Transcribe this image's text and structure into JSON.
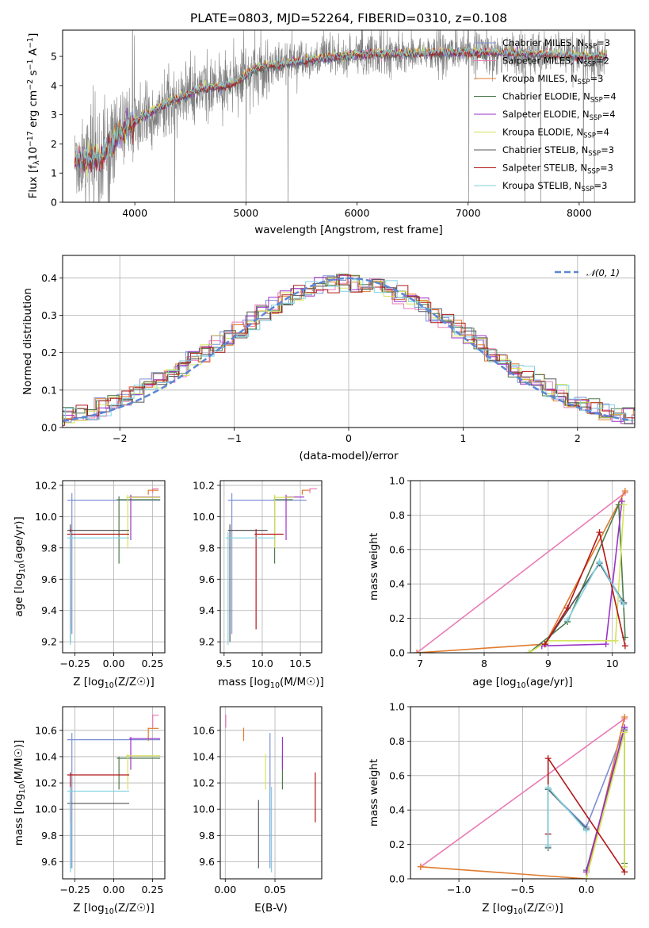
{
  "page": {
    "title": "PLATE=0803, MJD=52264, FIBERID=0310, z=0.108"
  },
  "series_colors": {
    "Chabrier MILES": "#7b8fd6",
    "Salpeter MILES": "#ea7bb6",
    "Kroupa MILES": "#e07b2e",
    "Chabrier ELODIE": "#4d7a4d",
    "Salpeter ELODIE": "#9b32c8",
    "Kroupa ELODIE": "#d4e35a",
    "Chabrier STELIB": "#555555",
    "Salpeter STELIB": "#b21818",
    "Kroupa STELIB": "#7fd2e0"
  },
  "legend": [
    {
      "base": "Chabrier MILES, N",
      "sub": "SSP",
      "tail": "=3",
      "color": "#7b8fd6"
    },
    {
      "base": "Salpeter MILES, N",
      "sub": "SSP",
      "tail": "=2",
      "color": "#ea7bb6"
    },
    {
      "base": "Kroupa MILES, N",
      "sub": "SSP",
      "tail": "=3",
      "color": "#e07b2e"
    },
    {
      "base": "Chabrier ELODIE, N",
      "sub": "SSP",
      "tail": "=4",
      "color": "#4d7a4d"
    },
    {
      "base": "Salpeter ELODIE, N",
      "sub": "SSP",
      "tail": "=4",
      "color": "#9b32c8"
    },
    {
      "base": "Kroupa ELODIE, N",
      "sub": "SSP",
      "tail": "=4",
      "color": "#d4e35a"
    },
    {
      "base": "Chabrier STELIB, N",
      "sub": "SSP",
      "tail": "=3",
      "color": "#555555"
    },
    {
      "base": "Salpeter STELIB, N",
      "sub": "SSP",
      "tail": "=3",
      "color": "#b21818"
    },
    {
      "base": "Kroupa STELIB, N",
      "sub": "SSP",
      "tail": "=3",
      "color": "#7fd2e0"
    }
  ],
  "chart_data": [
    {
      "type": "line",
      "id": "spectrum",
      "title": "PLATE=0803, MJD=52264, FIBERID=0310, z=0.108",
      "xlabel": "wavelength [Angstrom, rest frame]",
      "ylabel": "Flux [fλ10⁻¹⁷ erg cm⁻² s⁻¹ A⁻¹]",
      "xlim": [
        3350,
        8500
      ],
      "ylim": [
        0,
        5.9
      ],
      "xticks": [
        "4000",
        "5000",
        "6000",
        "7000",
        "8000"
      ],
      "yticks": [
        "0",
        "1",
        "2",
        "3",
        "4",
        "5"
      ],
      "grid": false,
      "legend_position": "right",
      "data_color": "#808080",
      "x_range_data": [
        3460,
        8250
      ],
      "continuum_points": [
        [
          3460,
          1.45
        ],
        [
          3700,
          1.5
        ],
        [
          3900,
          2.5
        ],
        [
          4100,
          3.0
        ],
        [
          4300,
          3.4
        ],
        [
          4600,
          3.9
        ],
        [
          4860,
          4.0
        ],
        [
          5100,
          4.6
        ],
        [
          5500,
          4.85
        ],
        [
          6000,
          5.05
        ],
        [
          6500,
          5.1
        ],
        [
          7000,
          5.15
        ],
        [
          7500,
          5.1
        ],
        [
          8000,
          5.0
        ],
        [
          8250,
          5.0
        ]
      ]
    },
    {
      "type": "line",
      "id": "residual-histogram",
      "xlabel": "(data-model)/error",
      "ylabel": "Normed distribution",
      "xlim": [
        -2.5,
        2.5
      ],
      "ylim": [
        0,
        0.46
      ],
      "xticks": [
        "−2",
        "−1",
        "0",
        "1",
        "2"
      ],
      "yticks": [
        "0.0",
        "0.1",
        "0.2",
        "0.3",
        "0.4"
      ],
      "grid": true,
      "legend_position": "top-right",
      "reference_curve": {
        "name": "N(0,1)",
        "color": "#5b86d6",
        "mean": 0,
        "sigma": 1
      }
    },
    {
      "type": "scatter",
      "id": "age-vs-metallicity",
      "xlabel": "Z [log10(Z/Z☉)]",
      "ylabel": "age  [log10(age/yr)]",
      "xlim": [
        -0.33,
        0.33
      ],
      "ylim": [
        9.13,
        10.23
      ],
      "xticks": [
        "−0.25",
        "0.00",
        "0.25"
      ],
      "yticks": [
        "9.2",
        "9.4",
        "9.6",
        "9.8",
        "10.0",
        "10.2"
      ],
      "grid": true
    },
    {
      "type": "scatter",
      "id": "age-vs-mass",
      "xlabel": "mass [log10(M/M☉)]",
      "ylabel": "",
      "xlim": [
        9.45,
        10.78
      ],
      "ylim": [
        9.13,
        10.23
      ],
      "xticks": [
        "9.5",
        "10.0",
        "10.5"
      ],
      "yticks": [
        "9.2",
        "9.4",
        "9.6",
        "9.8",
        "10.0",
        "10.2"
      ],
      "grid": true
    },
    {
      "type": "line",
      "id": "mass-weight-vs-age",
      "xlabel": "age  [log10(age/yr)]",
      "ylabel": "mass weight",
      "xlim": [
        6.85,
        10.35
      ],
      "ylim": [
        0,
        1.0
      ],
      "xticks": [
        "7",
        "8",
        "9",
        "10"
      ],
      "yticks": [
        "0.0",
        "0.2",
        "0.4",
        "0.6",
        "0.8",
        "1.0"
      ],
      "grid": true,
      "series": [
        {
          "name": "Chabrier MILES",
          "color": "#7b8fd6",
          "points": [
            [
              8.95,
              0.05
            ],
            [
              9.8,
              0.52
            ],
            [
              10.15,
              0.3
            ]
          ]
        },
        {
          "name": "Salpeter MILES",
          "color": "#ea7bb6",
          "points": [
            [
              6.95,
              0.0
            ],
            [
              10.2,
              0.93
            ]
          ]
        },
        {
          "name": "Kroupa MILES",
          "color": "#e07b2e",
          "points": [
            [
              6.95,
              0.0
            ],
            [
              8.95,
              0.05
            ],
            [
              10.2,
              0.94
            ]
          ]
        },
        {
          "name": "Chabrier ELODIE",
          "color": "#4d7a4d",
          "points": [
            [
              8.7,
              0.0
            ],
            [
              9.3,
              0.18
            ],
            [
              10.1,
              0.86
            ],
            [
              10.2,
              0.09
            ]
          ]
        },
        {
          "name": "Salpeter ELODIE",
          "color": "#9b32c8",
          "points": [
            [
              8.9,
              0.04
            ],
            [
              9.9,
              0.05
            ],
            [
              10.15,
              0.88
            ]
          ]
        },
        {
          "name": "Kroupa ELODIE",
          "color": "#d4e35a",
          "points": [
            [
              8.7,
              0.0
            ],
            [
              9.0,
              0.07
            ],
            [
              10.05,
              0.07
            ],
            [
              10.18,
              0.86
            ]
          ]
        },
        {
          "name": "Chabrier STELIB",
          "color": "#555555",
          "points": [
            [
              8.95,
              0.05
            ],
            [
              9.8,
              0.52
            ],
            [
              10.18,
              0.29
            ]
          ]
        },
        {
          "name": "Salpeter STELIB",
          "color": "#b21818",
          "points": [
            [
              8.95,
              0.05
            ],
            [
              9.3,
              0.26
            ],
            [
              9.8,
              0.7
            ],
            [
              10.2,
              0.04
            ]
          ]
        },
        {
          "name": "Kroupa STELIB",
          "color": "#7fd2e0",
          "points": [
            [
              9.3,
              0.19
            ],
            [
              9.8,
              0.53
            ],
            [
              10.18,
              0.28
            ]
          ]
        }
      ]
    },
    {
      "type": "scatter",
      "id": "mass-vs-metallicity",
      "xlabel": "Z [log10(Z/Z☉)]",
      "ylabel": "mass [log10(M/M☉)]",
      "xlim": [
        -0.33,
        0.33
      ],
      "ylim": [
        9.47,
        10.78
      ],
      "xticks": [
        "−0.25",
        "0.00",
        "0.25"
      ],
      "yticks": [
        "9.6",
        "9.8",
        "10.0",
        "10.2",
        "10.4",
        "10.6"
      ],
      "grid": true
    },
    {
      "type": "scatter",
      "id": "mass-vs-extinction",
      "xlabel": "E(B-V)",
      "ylabel": "",
      "xlim": [
        -0.005,
        0.097
      ],
      "ylim": [
        9.47,
        10.78
      ],
      "xticks": [
        "0.00",
        "0.05"
      ],
      "yticks": [
        "9.6",
        "9.8",
        "10.0",
        "10.2",
        "10.4",
        "10.6"
      ],
      "grid": true
    },
    {
      "type": "line",
      "id": "mass-weight-vs-metallicity",
      "xlabel": "Z [log10(Z/Z☉)]",
      "ylabel": "mass weight",
      "xlim": [
        -1.38,
        0.38
      ],
      "ylim": [
        0,
        1.0
      ],
      "xticks": [
        "−1.0",
        "−0.5",
        "0.0"
      ],
      "yticks": [
        "0.0",
        "0.2",
        "0.4",
        "0.6",
        "0.8",
        "1.0"
      ],
      "grid": true,
      "series": [
        {
          "name": "Chabrier MILES",
          "color": "#7b8fd6",
          "points": [
            [
              -0.3,
              0.19
            ],
            [
              -0.3,
              0.52
            ],
            [
              0.0,
              0.3
            ],
            [
              0.3,
              0.87
            ]
          ]
        },
        {
          "name": "Salpeter MILES",
          "color": "#ea7bb6",
          "points": [
            [
              -1.3,
              0.07
            ],
            [
              0.3,
              0.93
            ]
          ]
        },
        {
          "name": "Kroupa MILES",
          "color": "#e07b2e",
          "points": [
            [
              -1.3,
              0.07
            ],
            [
              0.0,
              0.0
            ],
            [
              0.3,
              0.94
            ]
          ]
        },
        {
          "name": "Chabrier ELODIE",
          "color": "#4d7a4d",
          "points": [
            [
              0.0,
              0.05
            ],
            [
              0.3,
              0.86
            ],
            [
              0.3,
              0.09
            ]
          ]
        },
        {
          "name": "Salpeter ELODIE",
          "color": "#9b32c8",
          "points": [
            [
              0.0,
              0.04
            ],
            [
              0.3,
              0.88
            ]
          ]
        },
        {
          "name": "Kroupa ELODIE",
          "color": "#d4e35a",
          "points": [
            [
              0.0,
              0.0
            ],
            [
              0.3,
              0.85
            ],
            [
              0.3,
              0.07
            ]
          ]
        },
        {
          "name": "Chabrier STELIB",
          "color": "#555555",
          "points": [
            [
              -0.3,
              0.18
            ],
            [
              -0.3,
              0.52
            ],
            [
              0.0,
              0.29
            ]
          ]
        },
        {
          "name": "Salpeter STELIB",
          "color": "#b21818",
          "points": [
            [
              -0.3,
              0.26
            ],
            [
              -0.3,
              0.7
            ],
            [
              0.3,
              0.04
            ]
          ]
        },
        {
          "name": "Kroupa STELIB",
          "color": "#7fd2e0",
          "points": [
            [
              -0.3,
              0.19
            ],
            [
              -0.3,
              0.53
            ],
            [
              0.0,
              0.28
            ]
          ]
        }
      ]
    }
  ],
  "fit_results": [
    {
      "name": "Chabrier MILES",
      "Z": [
        -0.3,
        0.3
      ],
      "age": [
        9.25,
        10.15
      ],
      "mass": [
        9.55,
        10.58
      ],
      "ebv": [
        0.04,
        0.05
      ]
    },
    {
      "name": "Salpeter MILES",
      "Z": [
        0.25,
        0.29
      ],
      "age": [
        10.15,
        10.18
      ],
      "mass": [
        10.62,
        10.72
      ],
      "ebv": [
        0.0,
        0.001
      ]
    },
    {
      "name": "Kroupa MILES",
      "Z": [
        0.22,
        0.29
      ],
      "age": [
        10.14,
        10.17
      ],
      "mass": [
        10.52,
        10.62
      ],
      "ebv": [
        0.018,
        0.019
      ]
    },
    {
      "name": "Chabrier ELODIE",
      "Z": [
        0.02,
        0.3
      ],
      "age": [
        9.7,
        10.13
      ],
      "mass": [
        10.15,
        10.4
      ],
      "ebv": [
        0.057,
        0.058
      ]
    },
    {
      "name": "Salpeter ELODIE",
      "Z": [
        0.1,
        0.3
      ],
      "age": [
        9.85,
        10.14
      ],
      "mass": [
        10.3,
        10.55
      ],
      "ebv": [
        0.057,
        0.058
      ]
    },
    {
      "name": "Kroupa ELODIE",
      "Z": [
        0.08,
        0.3
      ],
      "age": [
        9.8,
        10.14
      ],
      "mass": [
        10.15,
        10.42
      ],
      "ebv": [
        0.04,
        0.041
      ]
    },
    {
      "name": "Chabrier STELIB",
      "Z": [
        -0.3,
        0.1
      ],
      "age": [
        9.2,
        9.95
      ],
      "mass": [
        9.55,
        10.07
      ],
      "ebv": [
        0.033,
        0.034
      ]
    },
    {
      "name": "Salpeter STELIB",
      "Z": [
        -0.3,
        0.1
      ],
      "age": [
        9.28,
        9.92
      ],
      "mass": [
        9.9,
        10.28
      ],
      "ebv": [
        0.09,
        0.091
      ]
    },
    {
      "name": "Kroupa STELIB",
      "Z": [
        -0.3,
        0.1
      ],
      "age": [
        9.18,
        9.9
      ],
      "mass": [
        9.52,
        10.17
      ],
      "ebv": [
        0.046,
        0.047
      ]
    }
  ]
}
